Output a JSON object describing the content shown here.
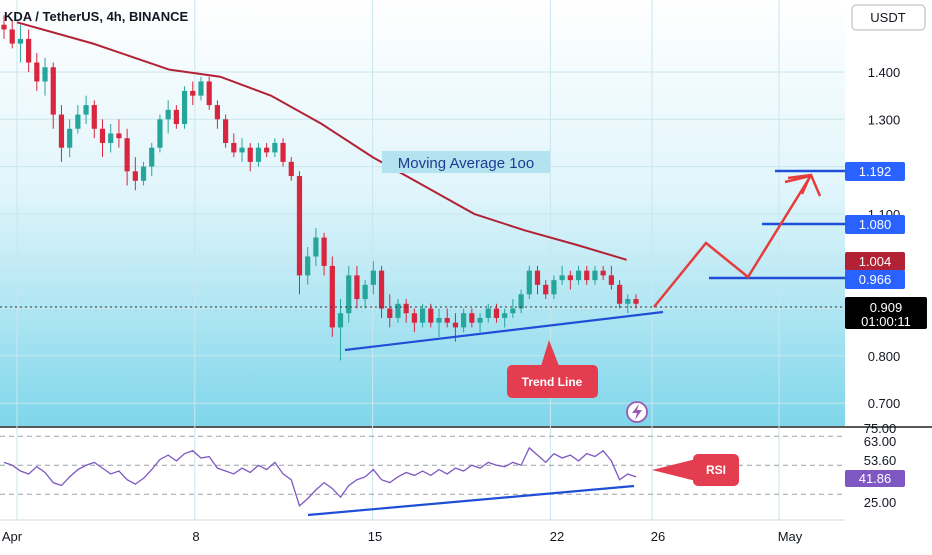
{
  "header": {
    "symbol_line": "KDA / TetherUS, 4h, BINANCE",
    "currency_badge": "USDT",
    "alert_icon": "lightning-bolt-icon"
  },
  "chart_data": [
    {
      "type": "candlestick",
      "title": "KDA / TetherUS, 4h, BINANCE",
      "price_axis": {
        "ticks": [
          1.4,
          1.3,
          1.1,
          0.8,
          0.7
        ],
        "tick_labels": [
          "1.400",
          "1.300",
          "1.100",
          "0.800",
          "0.700"
        ],
        "ylim": [
          0.655,
          1.53
        ],
        "position": "right"
      },
      "time_axis": {
        "ticks": [
          "Apr",
          "8",
          "15",
          "22",
          "26",
          "May"
        ]
      },
      "grid": true,
      "moving_average": {
        "label": "Moving Average 1oo",
        "color": "#b22234",
        "points": [
          [
            "Apr 1",
            1.505
          ],
          [
            "Apr 4",
            1.46
          ],
          [
            "Apr 7",
            1.405
          ],
          [
            "Apr 9",
            1.39
          ],
          [
            "Apr 11",
            1.35
          ],
          [
            "Apr 13",
            1.29
          ],
          [
            "Apr 15",
            1.22
          ],
          [
            "Apr 17",
            1.16
          ],
          [
            "Apr 19",
            1.1
          ],
          [
            "Apr 21",
            1.065
          ],
          [
            "Apr 23",
            1.035
          ],
          [
            "Apr 25",
            1.003
          ]
        ]
      },
      "candles": {
        "up_color": "#26a69a",
        "down_color": "#d7263d",
        "ohlc": [
          [
            1.5,
            1.52,
            1.47,
            1.49
          ],
          [
            1.49,
            1.51,
            1.45,
            1.46
          ],
          [
            1.46,
            1.5,
            1.42,
            1.47
          ],
          [
            1.47,
            1.49,
            1.4,
            1.42
          ],
          [
            1.42,
            1.44,
            1.36,
            1.38
          ],
          [
            1.38,
            1.43,
            1.35,
            1.41
          ],
          [
            1.41,
            1.42,
            1.28,
            1.31
          ],
          [
            1.31,
            1.33,
            1.21,
            1.24
          ],
          [
            1.24,
            1.3,
            1.22,
            1.28
          ],
          [
            1.28,
            1.33,
            1.27,
            1.31
          ],
          [
            1.31,
            1.35,
            1.29,
            1.33
          ],
          [
            1.33,
            1.34,
            1.26,
            1.28
          ],
          [
            1.28,
            1.3,
            1.22,
            1.25
          ],
          [
            1.25,
            1.29,
            1.23,
            1.27
          ],
          [
            1.27,
            1.3,
            1.24,
            1.26
          ],
          [
            1.26,
            1.28,
            1.16,
            1.19
          ],
          [
            1.19,
            1.22,
            1.15,
            1.17
          ],
          [
            1.17,
            1.21,
            1.16,
            1.2
          ],
          [
            1.2,
            1.25,
            1.18,
            1.24
          ],
          [
            1.24,
            1.31,
            1.23,
            1.3
          ],
          [
            1.3,
            1.34,
            1.27,
            1.32
          ],
          [
            1.32,
            1.33,
            1.28,
            1.29
          ],
          [
            1.29,
            1.37,
            1.28,
            1.36
          ],
          [
            1.36,
            1.38,
            1.33,
            1.35
          ],
          [
            1.35,
            1.39,
            1.34,
            1.38
          ],
          [
            1.38,
            1.39,
            1.32,
            1.33
          ],
          [
            1.33,
            1.34,
            1.28,
            1.3
          ],
          [
            1.3,
            1.31,
            1.24,
            1.25
          ],
          [
            1.25,
            1.27,
            1.22,
            1.23
          ],
          [
            1.23,
            1.26,
            1.21,
            1.24
          ],
          [
            1.24,
            1.25,
            1.19,
            1.21
          ],
          [
            1.21,
            1.25,
            1.2,
            1.24
          ],
          [
            1.24,
            1.25,
            1.22,
            1.23
          ],
          [
            1.23,
            1.26,
            1.22,
            1.25
          ],
          [
            1.25,
            1.26,
            1.2,
            1.21
          ],
          [
            1.21,
            1.22,
            1.17,
            1.18
          ],
          [
            1.18,
            1.19,
            0.93,
            0.97
          ],
          [
            0.97,
            1.03,
            0.95,
            1.01
          ],
          [
            1.01,
            1.07,
            0.99,
            1.05
          ],
          [
            1.05,
            1.06,
            0.97,
            0.99
          ],
          [
            0.99,
            1.01,
            0.84,
            0.86
          ],
          [
            0.86,
            0.92,
            0.79,
            0.89
          ],
          [
            0.89,
            0.99,
            0.87,
            0.97
          ],
          [
            0.97,
            0.99,
            0.9,
            0.92
          ],
          [
            0.92,
            0.96,
            0.9,
            0.95
          ],
          [
            0.95,
            1.0,
            0.93,
            0.98
          ],
          [
            0.98,
            0.99,
            0.88,
            0.9
          ],
          [
            0.9,
            0.93,
            0.86,
            0.88
          ],
          [
            0.88,
            0.92,
            0.87,
            0.91
          ],
          [
            0.91,
            0.92,
            0.87,
            0.89
          ],
          [
            0.89,
            0.9,
            0.85,
            0.87
          ],
          [
            0.87,
            0.91,
            0.86,
            0.9
          ],
          [
            0.9,
            0.91,
            0.86,
            0.87
          ],
          [
            0.87,
            0.9,
            0.84,
            0.88
          ],
          [
            0.88,
            0.9,
            0.86,
            0.87
          ],
          [
            0.87,
            0.89,
            0.83,
            0.86
          ],
          [
            0.86,
            0.9,
            0.85,
            0.89
          ],
          [
            0.89,
            0.9,
            0.86,
            0.87
          ],
          [
            0.87,
            0.89,
            0.85,
            0.88
          ],
          [
            0.88,
            0.91,
            0.87,
            0.9
          ],
          [
            0.9,
            0.91,
            0.87,
            0.88
          ],
          [
            0.88,
            0.9,
            0.86,
            0.89
          ],
          [
            0.89,
            0.92,
            0.88,
            0.9
          ],
          [
            0.9,
            0.94,
            0.89,
            0.93
          ],
          [
            0.93,
            0.99,
            0.92,
            0.98
          ],
          [
            0.98,
            0.99,
            0.93,
            0.95
          ],
          [
            0.95,
            0.96,
            0.92,
            0.93
          ],
          [
            0.93,
            0.97,
            0.92,
            0.96
          ],
          [
            0.96,
            0.99,
            0.95,
            0.97
          ],
          [
            0.97,
            0.98,
            0.94,
            0.96
          ],
          [
            0.96,
            0.99,
            0.95,
            0.98
          ],
          [
            0.98,
            0.99,
            0.95,
            0.96
          ],
          [
            0.96,
            0.99,
            0.95,
            0.98
          ],
          [
            0.98,
            0.99,
            0.96,
            0.97
          ],
          [
            0.97,
            0.99,
            0.94,
            0.95
          ],
          [
            0.95,
            0.96,
            0.9,
            0.91
          ],
          [
            0.91,
            0.93,
            0.89,
            0.92
          ],
          [
            0.92,
            0.93,
            0.9,
            0.91
          ]
        ]
      },
      "last_price": {
        "value": "0.909",
        "countdown": "01:00:11"
      },
      "price_labels": [
        {
          "value": "1.192",
          "color": "#2962ff"
        },
        {
          "value": "1.080",
          "color": "#2962ff"
        },
        {
          "value": "1.004",
          "color": "#b22234"
        },
        {
          "value": "0.966",
          "color": "#2962ff"
        }
      ],
      "annotations": {
        "moving_average_label": "Moving Average 1oo",
        "trend_line_label": "Trend Line",
        "target_levels": [
          1.192,
          1.08,
          0.966
        ],
        "projected_path": [
          [
            0.91,
            0
          ],
          [
            1.05,
            1
          ],
          [
            0.97,
            2
          ],
          [
            1.19,
            3
          ]
        ]
      }
    },
    {
      "type": "line",
      "name": "RSI",
      "axis": {
        "ticks": [
          75.0,
          63.0,
          53.6,
          25.0
        ],
        "tick_labels": [
          "75.00",
          "63.00",
          "53.60",
          "25.00"
        ],
        "ylim": [
          20,
          78
        ]
      },
      "bands": [
        70,
        50,
        30
      ],
      "current_value": "41.86",
      "values": [
        52,
        50,
        46,
        44,
        49,
        45,
        38,
        36,
        42,
        47,
        50,
        52,
        48,
        44,
        46,
        40,
        37,
        41,
        47,
        54,
        57,
        53,
        58,
        60,
        55,
        56,
        48,
        46,
        44,
        48,
        45,
        50,
        47,
        52,
        44,
        40,
        22,
        27,
        33,
        38,
        34,
        28,
        36,
        40,
        42,
        47,
        40,
        38,
        42,
        45,
        43,
        46,
        43,
        47,
        44,
        48,
        46,
        50,
        48,
        52,
        50,
        49,
        52,
        50,
        62,
        57,
        52,
        58,
        55,
        57,
        53,
        58,
        56,
        60,
        53,
        40,
        44,
        42
      ],
      "annotation_label": "RSI",
      "trend_line": true
    }
  ]
}
